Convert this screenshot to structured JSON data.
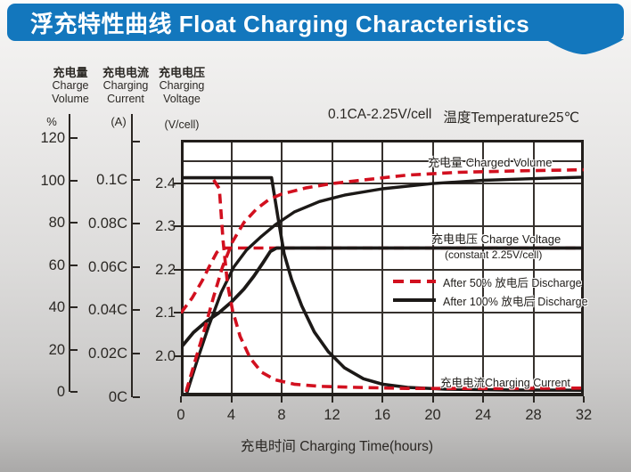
{
  "banner": {
    "title": "浮充特性曲线 Float Charging Characteristics"
  },
  "conditions": {
    "rate": "0.1CA-2.25V/cell",
    "temperature": "温度Temperature25℃"
  },
  "y_axes": {
    "volume": {
      "title_cn": "充电量",
      "title_en_line1": "Charge",
      "title_en_line2": "Volume",
      "unit": "%",
      "ticks": [
        "120",
        "100",
        "80",
        "60",
        "40",
        "20",
        "0"
      ]
    },
    "current": {
      "title_cn": "充电电流",
      "title_en_line1": "Charging",
      "title_en_line2": "Current",
      "unit": "(A)",
      "ticks": [
        "0.1C",
        "0.08C",
        "0.06C",
        "0.04C",
        "0.02C",
        "0C"
      ]
    },
    "voltage": {
      "title_cn": "充电电压",
      "title_en_line1": "Charging",
      "title_en_line2": "Voltage",
      "unit": "(V/cell)",
      "ticks": [
        "2.4",
        "2.3",
        "2.2",
        "2.1",
        "2.0"
      ]
    }
  },
  "x_axis": {
    "title": "充电时间 Charging Time(hours)",
    "ticks": [
      "0",
      "4",
      "8",
      "12",
      "16",
      "20",
      "24",
      "28",
      "32"
    ]
  },
  "plot_labels": {
    "charged_volume": "充电量 Charged Volume",
    "charge_voltage": "充电电压 Charge Voltage",
    "charge_voltage_sub": "(constant 2.25V/cell)",
    "charging_current": "充电电流Charging Current"
  },
  "legend": [
    {
      "label": "After 50%  放电后 Discharge",
      "style": "dashed",
      "color": "#d2101f"
    },
    {
      "label": "After 100%  放电后 Discharge",
      "style": "solid",
      "color": "#1c1917"
    }
  ],
  "colors": {
    "banner_blue": "#1377bd",
    "curve_red": "#d2101f",
    "curve_black": "#1c1917"
  },
  "chart_data": {
    "type": "line",
    "title": "浮充特性曲线 Float Charging Characteristics",
    "xlabel": "充电时间 Charging Time(hours)",
    "x_range_hours": [
      0,
      32
    ],
    "axes_ranges": {
      "volume_pct": [
        0,
        120
      ],
      "current_CA": [
        0,
        0.1
      ],
      "voltage_V_per_cell": [
        2.0,
        2.4
      ]
    },
    "grid": true,
    "series": [
      {
        "name": "charging-current-after-100pct-discharge",
        "axis": "current",
        "color": "#1c1917",
        "dashed": false,
        "width": 3.6,
        "points": [
          [
            0,
            0.101
          ],
          [
            7.2,
            0.101
          ],
          [
            7.7,
            0.083
          ],
          [
            8.2,
            0.066
          ],
          [
            8.8,
            0.054
          ],
          [
            9.6,
            0.042
          ],
          [
            10.6,
            0.03
          ],
          [
            11.7,
            0.021
          ],
          [
            13,
            0.0135
          ],
          [
            14.5,
            0.0085
          ],
          [
            16,
            0.006
          ],
          [
            18,
            0.0045
          ],
          [
            21,
            0.0037
          ],
          [
            26,
            0.0033
          ],
          [
            32,
            0.0032
          ]
        ]
      },
      {
        "name": "charge-voltage-after-50pct-discharge",
        "axis": "voltage",
        "color": "#d2101f",
        "dashed": true,
        "width": 3.6,
        "points": [
          [
            0,
            2.1
          ],
          [
            0.9,
            2.135
          ],
          [
            1.7,
            2.175
          ],
          [
            2.3,
            2.21
          ],
          [
            2.85,
            2.24
          ],
          [
            3.2,
            2.25
          ],
          [
            32,
            2.25
          ]
        ]
      },
      {
        "name": "charge-voltage-after-100pct-discharge",
        "axis": "voltage",
        "color": "#1c1917",
        "dashed": false,
        "width": 3.8,
        "points": [
          [
            0,
            2.02
          ],
          [
            1,
            2.055
          ],
          [
            2,
            2.08
          ],
          [
            3,
            2.1
          ],
          [
            4,
            2.125
          ],
          [
            5,
            2.155
          ],
          [
            5.8,
            2.185
          ],
          [
            6.5,
            2.215
          ],
          [
            7.1,
            2.242
          ],
          [
            7.6,
            2.25
          ],
          [
            32,
            2.25
          ]
        ]
      },
      {
        "name": "charged-volume-after-100pct-discharge",
        "axis": "volume",
        "color": "#1c1917",
        "dashed": false,
        "width": 3.4,
        "points": [
          [
            0.5,
            0
          ],
          [
            1.3,
            15
          ],
          [
            2.2,
            31
          ],
          [
            3.2,
            47
          ],
          [
            4.2,
            59
          ],
          [
            5.2,
            67
          ],
          [
            6.3,
            73
          ],
          [
            7.5,
            79
          ],
          [
            9,
            85
          ],
          [
            11,
            90
          ],
          [
            13,
            93
          ],
          [
            16,
            96
          ],
          [
            20,
            98.5
          ],
          [
            24,
            100
          ],
          [
            28,
            100.8
          ],
          [
            32,
            101.5
          ]
        ]
      },
      {
        "name": "charged-volume-after-50pct-discharge",
        "axis": "volume",
        "color": "#d2101f",
        "dashed": true,
        "width": 3.6,
        "points": [
          [
            0.4,
            0
          ],
          [
            1.1,
            14
          ],
          [
            1.9,
            30
          ],
          [
            2.6,
            45
          ],
          [
            3.3,
            59
          ],
          [
            4.1,
            71
          ],
          [
            5,
            80
          ],
          [
            6,
            86.5
          ],
          [
            7,
            91
          ],
          [
            8,
            93.5
          ],
          [
            10,
            96.5
          ],
          [
            12,
            98.5
          ],
          [
            15,
            100.5
          ],
          [
            18,
            102.5
          ],
          [
            22,
            103.8
          ],
          [
            27,
            104.5
          ],
          [
            32,
            105
          ]
        ]
      },
      {
        "name": "charging-current-after-50pct-discharge",
        "axis": "current",
        "color": "#d2101f",
        "dashed": true,
        "width": 3.6,
        "points": [
          [
            2.6,
            0.1
          ],
          [
            3.05,
            0.096
          ],
          [
            3.35,
            0.072
          ],
          [
            3.7,
            0.052
          ],
          [
            4.1,
            0.04
          ],
          [
            4.7,
            0.028
          ],
          [
            5.5,
            0.018
          ],
          [
            6.4,
            0.0115
          ],
          [
            7.5,
            0.008
          ],
          [
            9,
            0.006
          ],
          [
            11,
            0.005
          ],
          [
            14,
            0.0045
          ],
          [
            18,
            0.004
          ],
          [
            25,
            0.004
          ],
          [
            32,
            0.0042
          ]
        ]
      }
    ]
  }
}
